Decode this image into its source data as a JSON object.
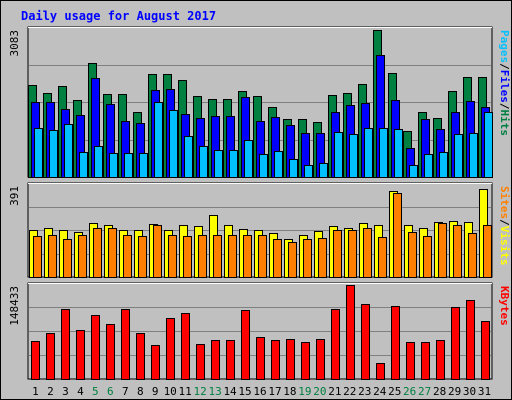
{
  "chart_data": {
    "type": "bar",
    "title": "Daily usage for August 2017",
    "categories": [
      "1",
      "2",
      "3",
      "4",
      "5",
      "6",
      "7",
      "8",
      "9",
      "10",
      "11",
      "12",
      "13",
      "14",
      "15",
      "16",
      "17",
      "18",
      "19",
      "20",
      "21",
      "22",
      "23",
      "24",
      "25",
      "26",
      "27",
      "28",
      "29",
      "30",
      "31"
    ],
    "weekend_days": [
      "5",
      "6",
      "12",
      "13",
      "19",
      "20",
      "26",
      "27"
    ],
    "panels": [
      {
        "id": "hits-files-pages",
        "ymax": 3083,
        "ymax_label": "3083",
        "legend": [
          {
            "text": "Pages",
            "color": "#00c0ff"
          },
          {
            "text": "/",
            "color": "#000000"
          },
          {
            "text": "Files",
            "color": "#0000ff"
          },
          {
            "text": "/",
            "color": "#000000"
          },
          {
            "text": "Hits",
            "color": "#008040"
          }
        ],
        "series": [
          {
            "name": "Hits",
            "color": "#008040",
            "values": [
              1920,
              1740,
              1900,
              1600,
              2370,
              1720,
              1720,
              1360,
              2140,
              2140,
              2030,
              1690,
              1630,
              1630,
              1790,
              1690,
              1450,
              1200,
              1200,
              1150,
              1700,
              1750,
              1940,
              3060,
              2160,
              950,
              1360,
              1230,
              1790,
              2080,
              2080
            ]
          },
          {
            "name": "Files",
            "color": "#0000ff",
            "values": [
              1570,
              1570,
              1420,
              1290,
              2060,
              1520,
              1160,
              1130,
              1810,
              1840,
              1310,
              1230,
              1280,
              1270,
              1660,
              1170,
              1250,
              1090,
              910,
              910,
              1360,
              1510,
              1550,
              2540,
              1610,
              600,
              1210,
              1000,
              1360,
              1590,
              1460
            ]
          },
          {
            "name": "Pages",
            "color": "#00c0ff",
            "values": [
              1030,
              980,
              1100,
              520,
              650,
              510,
              490,
              500,
              1560,
              1400,
              850,
              650,
              570,
              560,
              770,
              480,
              540,
              380,
              260,
              300,
              930,
              900,
              1030,
              1030,
              1000,
              240,
              480,
              520,
              900,
              920,
              1350
            ]
          }
        ]
      },
      {
        "id": "visits-sites",
        "ymax": 391,
        "ymax_label": "391",
        "legend": [
          {
            "text": "Sites",
            "color": "#ff8000"
          },
          {
            "text": "/",
            "color": "#000000"
          },
          {
            "text": "Visits",
            "color": "#ffff00"
          }
        ],
        "series": [
          {
            "name": "Visits",
            "color": "#ffff00",
            "values": [
              200,
              210,
              200,
              190,
              230,
              220,
              200,
              200,
              225,
              200,
              220,
              215,
              265,
              220,
              205,
              200,
              185,
              160,
              180,
              195,
              215,
              210,
              230,
              220,
              365,
              220,
              210,
              235,
              240,
              235,
              375
            ]
          },
          {
            "name": "Sites",
            "color": "#ff8000",
            "values": [
              175,
              180,
              160,
              180,
              210,
              210,
              180,
              175,
              220,
              180,
              175,
              180,
              180,
              180,
              180,
              180,
              160,
              150,
              160,
              165,
              200,
              200,
              210,
              170,
              355,
              190,
              175,
              230,
              220,
              185,
              220
            ]
          }
        ]
      },
      {
        "id": "kbytes",
        "ymax": 148433,
        "ymax_label": "148433",
        "legend": [
          {
            "text": "KBytes",
            "color": "#ff0000"
          }
        ],
        "series": [
          {
            "name": "KBytes",
            "color": "#ff0000",
            "values": [
              60600,
              72000,
              110500,
              77000,
              101000,
              86500,
              111000,
              72000,
              53300,
              96500,
              104500,
              54800,
              62000,
              62000,
              108500,
              67000,
              61400,
              63600,
              59200,
              63600,
              111000,
              148000,
              118500,
              25900,
              114700,
              59100,
              59100,
              62000,
              113000,
              125000,
              91600
            ]
          }
        ]
      }
    ]
  }
}
